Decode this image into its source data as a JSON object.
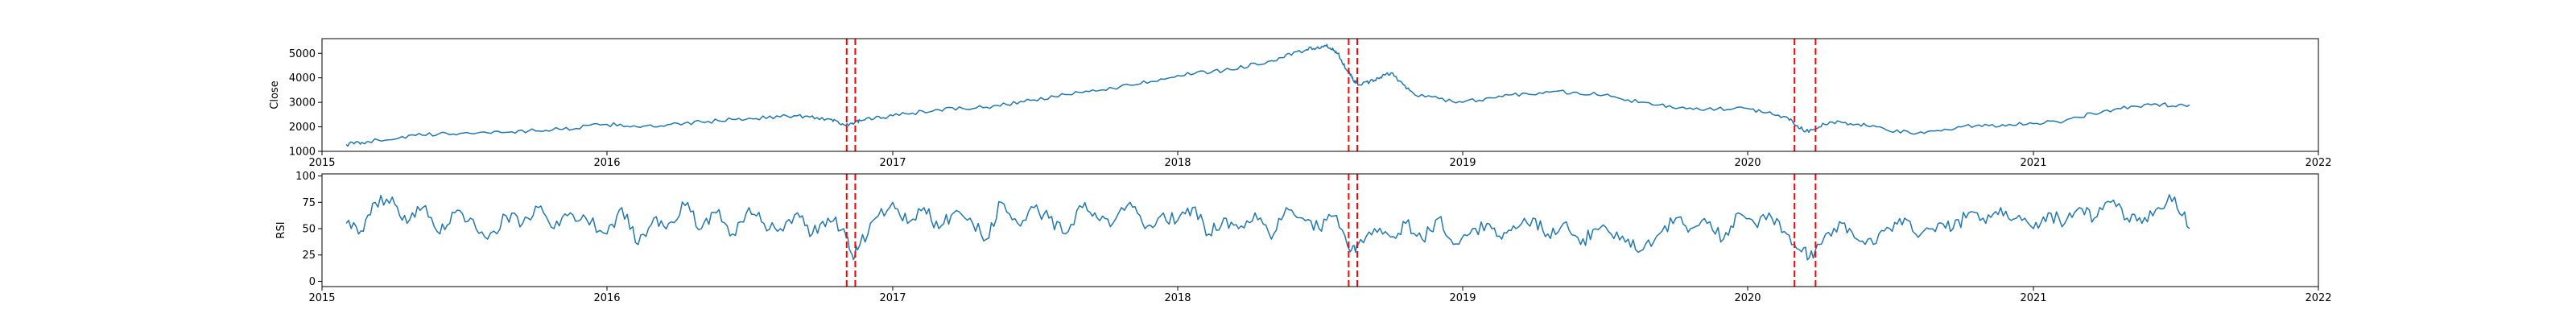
{
  "chart_data": [
    {
      "type": "line",
      "title": "",
      "xlabel": "",
      "ylabel": "Close",
      "xlim": [
        "2015-01-01",
        "2022-01-01"
      ],
      "ylim": [
        1000,
        5600
      ],
      "xticks": [
        "2015",
        "2016",
        "2017",
        "2018",
        "2019",
        "2020",
        "2021",
        "2022"
      ],
      "yticks": [
        "1000",
        "2000",
        "3000",
        "4000",
        "5000"
      ],
      "grid": false,
      "legend": "none",
      "series": [
        {
          "color": "#1f77b4",
          "x": [
            "2015-02-01",
            "2015-03-01",
            "2015-05-01",
            "2015-07-01",
            "2015-09-01",
            "2015-11-01",
            "2016-01-01",
            "2016-03-01",
            "2016-05-01",
            "2016-07-01",
            "2016-09-01",
            "2016-10-15",
            "2016-11-05",
            "2016-11-20",
            "2017-01-01",
            "2017-03-01",
            "2017-05-01",
            "2017-07-01",
            "2017-09-01",
            "2017-11-01",
            "2018-01-01",
            "2018-03-01",
            "2018-05-01",
            "2018-06-15",
            "2018-07-10",
            "2018-07-25",
            "2018-08-10",
            "2018-08-20",
            "2018-09-10",
            "2018-10-01",
            "2018-11-01",
            "2019-01-01",
            "2019-03-01",
            "2019-05-01",
            "2019-07-01",
            "2019-09-01",
            "2019-11-01",
            "2020-01-01",
            "2020-02-20",
            "2020-03-15",
            "2020-04-15",
            "2020-06-01",
            "2020-08-01",
            "2020-10-01",
            "2020-12-01",
            "2021-02-01",
            "2021-04-01",
            "2021-06-01",
            "2021-07-20"
          ],
          "values": [
            1280,
            1400,
            1650,
            1750,
            1800,
            1900,
            2100,
            2000,
            2200,
            2350,
            2450,
            2300,
            2050,
            2250,
            2450,
            2700,
            2800,
            3100,
            3400,
            3700,
            4100,
            4300,
            4700,
            5150,
            5300,
            5000,
            4100,
            3700,
            3900,
            4200,
            3300,
            3000,
            3300,
            3450,
            3300,
            2900,
            2700,
            2750,
            2400,
            1800,
            2200,
            2050,
            1700,
            2000,
            2100,
            2200,
            2650,
            2900,
            2900
          ]
        }
      ],
      "vlines": [
        "2016-11-03",
        "2016-11-14",
        "2018-08-08",
        "2018-08-19",
        "2020-03-01",
        "2020-03-28"
      ]
    },
    {
      "type": "line",
      "title": "",
      "xlabel": "",
      "ylabel": "RSI",
      "xlim": [
        "2015-01-01",
        "2022-01-01"
      ],
      "ylim": [
        -5,
        102
      ],
      "xticks": [
        "2015",
        "2016",
        "2017",
        "2018",
        "2019",
        "2020",
        "2021",
        "2022"
      ],
      "yticks": [
        "0",
        "25",
        "50",
        "75",
        "100"
      ],
      "grid": false,
      "legend": "none",
      "series": [
        {
          "color": "#1f77b4",
          "x": [
            "2015-02-01",
            "2015-02-20",
            "2015-03-10",
            "2015-04-01",
            "2015-04-20",
            "2015-05-10",
            "2015-06-01",
            "2015-06-20",
            "2015-07-10",
            "2015-08-01",
            "2015-08-25",
            "2015-09-15",
            "2015-10-05",
            "2015-10-25",
            "2015-11-15",
            "2015-12-05",
            "2016-01-01",
            "2016-01-20",
            "2016-02-10",
            "2016-03-01",
            "2016-03-20",
            "2016-04-10",
            "2016-05-01",
            "2016-05-20",
            "2016-06-10",
            "2016-07-01",
            "2016-07-20",
            "2016-08-10",
            "2016-09-01",
            "2016-09-20",
            "2016-10-10",
            "2016-10-30",
            "2016-11-10",
            "2016-11-20",
            "2016-12-10",
            "2017-01-01",
            "2017-01-20",
            "2017-02-10",
            "2017-03-01",
            "2017-03-20",
            "2017-04-10",
            "2017-05-01",
            "2017-05-20",
            "2017-06-10",
            "2017-07-01",
            "2017-07-20",
            "2017-08-10",
            "2017-09-01",
            "2017-09-20",
            "2017-10-10",
            "2017-11-01",
            "2017-11-20",
            "2017-12-10",
            "2018-01-01",
            "2018-01-20",
            "2018-02-10",
            "2018-03-01",
            "2018-03-20",
            "2018-04-10",
            "2018-05-01",
            "2018-05-20",
            "2018-06-10",
            "2018-07-01",
            "2018-07-20",
            "2018-08-10",
            "2018-08-20",
            "2018-09-10",
            "2018-10-01",
            "2018-10-20",
            "2018-11-10",
            "2018-12-01",
            "2018-12-20",
            "2019-01-10",
            "2019-02-01",
            "2019-02-20",
            "2019-03-10",
            "2019-04-01",
            "2019-04-20",
            "2019-05-10",
            "2019-06-01",
            "2019-06-20",
            "2019-07-10",
            "2019-08-01",
            "2019-08-20",
            "2019-09-10",
            "2019-10-01",
            "2019-10-20",
            "2019-11-10",
            "2019-12-01",
            "2019-12-20",
            "2020-01-10",
            "2020-02-01",
            "2020-02-20",
            "2020-03-10",
            "2020-03-25",
            "2020-04-10",
            "2020-05-01",
            "2020-05-20",
            "2020-06-10",
            "2020-07-01",
            "2020-07-20",
            "2020-08-10",
            "2020-09-01",
            "2020-09-20",
            "2020-10-10",
            "2020-11-01",
            "2020-11-20",
            "2020-12-10",
            "2021-01-01",
            "2021-01-20",
            "2021-02-10",
            "2021-03-01",
            "2021-03-20",
            "2021-04-10",
            "2021-05-01",
            "2021-05-20",
            "2021-06-10",
            "2021-07-01",
            "2021-07-20"
          ],
          "values": [
            55,
            48,
            75,
            80,
            55,
            70,
            45,
            65,
            60,
            40,
            62,
            55,
            70,
            50,
            65,
            60,
            45,
            70,
            35,
            60,
            55,
            72,
            50,
            65,
            45,
            70,
            55,
            50,
            65,
            45,
            60,
            50,
            25,
            35,
            60,
            75,
            55,
            70,
            50,
            65,
            60,
            40,
            75,
            55,
            70,
            60,
            45,
            70,
            60,
            55,
            75,
            50,
            62,
            58,
            70,
            45,
            60,
            50,
            65,
            40,
            70,
            60,
            50,
            62,
            28,
            35,
            50,
            42,
            55,
            40,
            60,
            35,
            45,
            55,
            40,
            50,
            60,
            45,
            55,
            35,
            50,
            45,
            40,
            30,
            45,
            60,
            50,
            55,
            40,
            65,
            55,
            60,
            45,
            28,
            22,
            45,
            55,
            40,
            35,
            50,
            60,
            45,
            55,
            50,
            65,
            55,
            70,
            60,
            50,
            65,
            55,
            70,
            60,
            75,
            60,
            55,
            70,
            80,
            50
          ]
        }
      ],
      "vlines": [
        "2016-11-03",
        "2016-11-14",
        "2018-08-08",
        "2018-08-19",
        "2020-03-01",
        "2020-03-28"
      ]
    }
  ],
  "colors": {
    "line": "#1f77b4",
    "vline": "#ff0000",
    "axes": "#000000",
    "background": "#ffffff"
  }
}
